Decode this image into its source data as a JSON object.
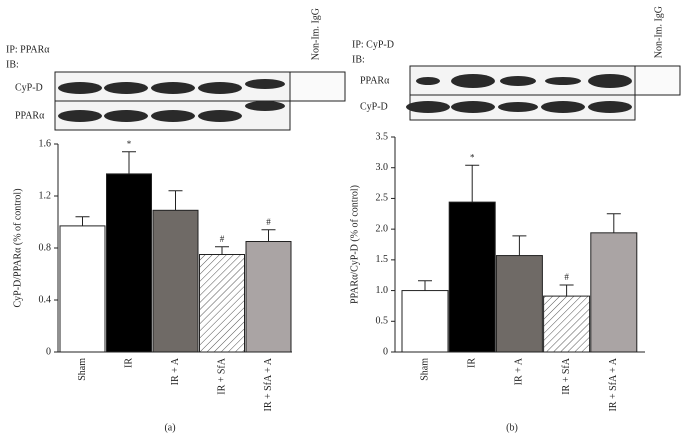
{
  "chart_data": [
    {
      "type": "bar",
      "label": "(a)",
      "ylabel": "CyP-D/PPARα (% of control)",
      "blot": {
        "ip": "IP: PPARα",
        "ib": "IB:",
        "rows": [
          "CyP-D",
          "PPARα"
        ],
        "control": "Non-Im. IgG"
      },
      "categories": [
        "Sham",
        "IR",
        "IR + A",
        "IR + SfA",
        "IR + SfA + A"
      ],
      "values": [
        0.97,
        1.37,
        1.09,
        0.75,
        0.85
      ],
      "errors": [
        0.07,
        0.17,
        0.15,
        0.06,
        0.09
      ],
      "markers": [
        null,
        "*",
        null,
        "#",
        "#"
      ],
      "colors": [
        "#ffffff",
        "#000000",
        "#6f6a66",
        "#ffffff",
        "#aaa4a4"
      ],
      "hatched": [
        false,
        false,
        false,
        true,
        false
      ],
      "ylim": [
        0,
        1.6
      ],
      "yticks": [
        0,
        0.4,
        0.8,
        1.2,
        1.6
      ]
    },
    {
      "type": "bar",
      "label": "(b)",
      "ylabel": "PPARα/CyP-D (% of control)",
      "blot": {
        "ip": "IP: CyP-D",
        "ib": "IB:",
        "rows": [
          "PPARα",
          "CyP-D"
        ],
        "control": "Non-Im. IgG"
      },
      "categories": [
        "Sham",
        "IR",
        "IR + A",
        "IR + SfA",
        "IR + SfA + A"
      ],
      "values": [
        1.0,
        2.44,
        1.57,
        0.91,
        1.94
      ],
      "errors": [
        0.16,
        0.6,
        0.32,
        0.18,
        0.31
      ],
      "markers": [
        null,
        "*",
        null,
        "#",
        null
      ],
      "colors": [
        "#ffffff",
        "#000000",
        "#6f6a66",
        "#ffffff",
        "#aaa4a4"
      ],
      "hatched": [
        false,
        false,
        false,
        true,
        false
      ],
      "ylim": [
        0,
        3.5
      ],
      "yticks": [
        0,
        0.5,
        {
          "value": 1,
          "label": "1.0"
        },
        1.5,
        {
          "value": 2,
          "label": "2.0"
        },
        2.5,
        {
          "value": 3,
          "label": "3.0"
        },
        3.5
      ]
    }
  ]
}
